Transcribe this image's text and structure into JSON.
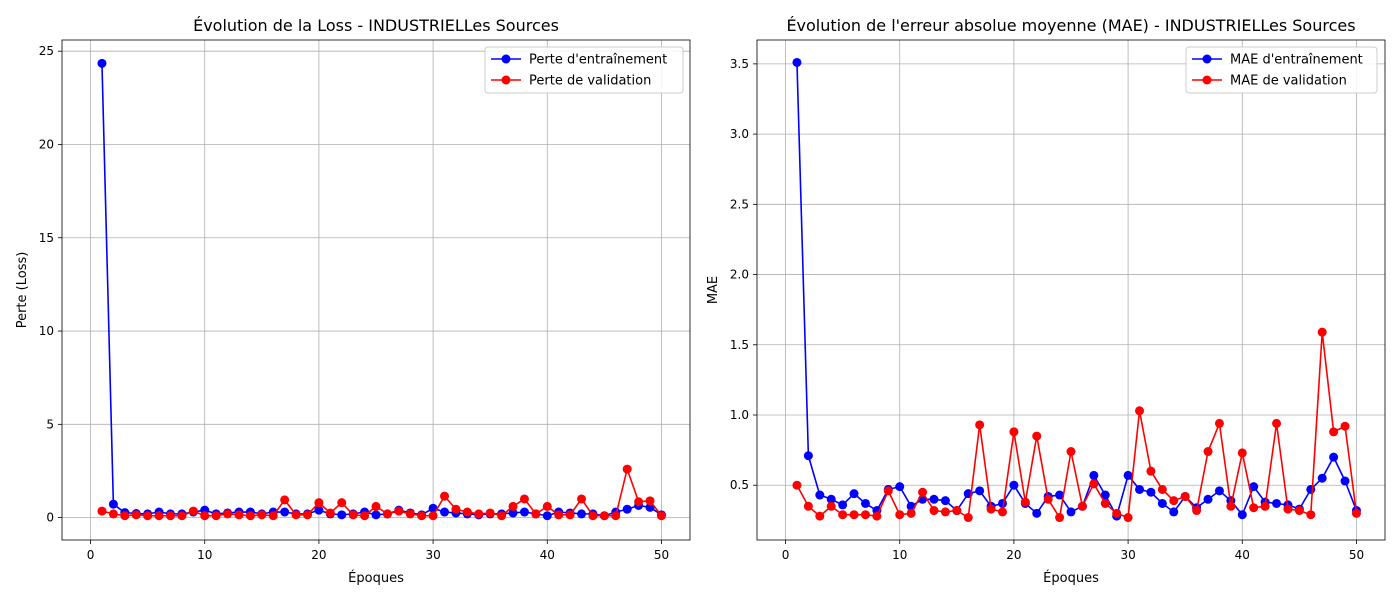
{
  "chart_data": [
    {
      "type": "line",
      "title": "Évolution de la Loss - INDUSTRIELLes Sources",
      "xlabel": "Époques",
      "ylabel": "Perte (Loss)",
      "xlim": [
        -2.5,
        52.5
      ],
      "ylim": [
        -1.2,
        25.6
      ],
      "xticks": [
        0,
        10,
        20,
        30,
        40,
        50
      ],
      "yticks": [
        0,
        5,
        10,
        15,
        20,
        25
      ],
      "grid": true,
      "legend": "top-right",
      "x": [
        1,
        2,
        3,
        4,
        5,
        6,
        7,
        8,
        9,
        10,
        11,
        12,
        13,
        14,
        15,
        16,
        17,
        18,
        19,
        20,
        21,
        22,
        23,
        24,
        25,
        26,
        27,
        28,
        29,
        30,
        31,
        32,
        33,
        34,
        35,
        36,
        37,
        38,
        39,
        40,
        41,
        42,
        43,
        44,
        45,
        46,
        47,
        48,
        49,
        50
      ],
      "series": [
        {
          "name": "Perte d'entraînement",
          "color": "#0000ff",
          "values": [
            24.35,
            0.72,
            0.27,
            0.22,
            0.2,
            0.3,
            0.2,
            0.2,
            0.3,
            0.4,
            0.2,
            0.25,
            0.3,
            0.3,
            0.2,
            0.3,
            0.3,
            0.2,
            0.2,
            0.4,
            0.2,
            0.15,
            0.2,
            0.3,
            0.15,
            0.2,
            0.4,
            0.25,
            0.15,
            0.5,
            0.3,
            0.25,
            0.2,
            0.15,
            0.2,
            0.2,
            0.25,
            0.3,
            0.2,
            0.1,
            0.3,
            0.25,
            0.2,
            0.2,
            0.1,
            0.3,
            0.45,
            0.65,
            0.55,
            0.15
          ]
        },
        {
          "name": "Perte de validation",
          "color": "#ff0000",
          "values": [
            0.35,
            0.2,
            0.1,
            0.15,
            0.1,
            0.1,
            0.1,
            0.1,
            0.35,
            0.1,
            0.1,
            0.2,
            0.15,
            0.1,
            0.15,
            0.1,
            0.95,
            0.15,
            0.15,
            0.8,
            0.25,
            0.8,
            0.15,
            0.1,
            0.6,
            0.2,
            0.35,
            0.2,
            0.1,
            0.1,
            1.15,
            0.45,
            0.3,
            0.2,
            0.25,
            0.1,
            0.6,
            1.0,
            0.2,
            0.6,
            0.15,
            0.15,
            1.0,
            0.1,
            0.1,
            0.1,
            2.6,
            0.85,
            0.9,
            0.1
          ]
        }
      ]
    },
    {
      "type": "line",
      "title": "Évolution de l'erreur absolue moyenne (MAE) - INDUSTRIELLes Sources",
      "xlabel": "Époques",
      "ylabel": "MAE",
      "xlim": [
        -2.5,
        52.5
      ],
      "ylim": [
        0.11,
        3.67
      ],
      "xticks": [
        0,
        10,
        20,
        30,
        40,
        50
      ],
      "yticks": [
        0.5,
        1.0,
        1.5,
        2.0,
        2.5,
        3.0,
        3.5
      ],
      "ytick_labels": [
        "0.5",
        "1.0",
        "1.5",
        "2.0",
        "2.5",
        "3.0",
        "3.5"
      ],
      "grid": true,
      "legend": "top-right",
      "x": [
        1,
        2,
        3,
        4,
        5,
        6,
        7,
        8,
        9,
        10,
        11,
        12,
        13,
        14,
        15,
        16,
        17,
        18,
        19,
        20,
        21,
        22,
        23,
        24,
        25,
        26,
        27,
        28,
        29,
        30,
        31,
        32,
        33,
        34,
        35,
        36,
        37,
        38,
        39,
        40,
        41,
        42,
        43,
        44,
        45,
        46,
        47,
        48,
        49,
        50
      ],
      "series": [
        {
          "name": "MAE d'entraînement",
          "color": "#0000ff",
          "values": [
            3.51,
            0.71,
            0.43,
            0.4,
            0.36,
            0.44,
            0.37,
            0.32,
            0.47,
            0.49,
            0.35,
            0.4,
            0.4,
            0.39,
            0.32,
            0.44,
            0.46,
            0.35,
            0.37,
            0.5,
            0.37,
            0.3,
            0.42,
            0.43,
            0.31,
            0.35,
            0.57,
            0.43,
            0.28,
            0.57,
            0.47,
            0.45,
            0.37,
            0.31,
            0.42,
            0.34,
            0.4,
            0.46,
            0.39,
            0.29,
            0.49,
            0.38,
            0.37,
            0.36,
            0.33,
            0.47,
            0.55,
            0.7,
            0.53,
            0.32
          ]
        },
        {
          "name": "MAE de validation",
          "color": "#ff0000",
          "values": [
            0.5,
            0.35,
            0.28,
            0.35,
            0.29,
            0.29,
            0.29,
            0.28,
            0.46,
            0.29,
            0.3,
            0.45,
            0.32,
            0.31,
            0.32,
            0.27,
            0.93,
            0.33,
            0.31,
            0.88,
            0.38,
            0.85,
            0.4,
            0.27,
            0.74,
            0.35,
            0.51,
            0.37,
            0.3,
            0.27,
            1.03,
            0.6,
            0.47,
            0.39,
            0.42,
            0.32,
            0.74,
            0.94,
            0.35,
            0.73,
            0.34,
            0.35,
            0.94,
            0.33,
            0.32,
            0.29,
            1.59,
            0.88,
            0.92,
            0.3
          ]
        }
      ]
    }
  ]
}
